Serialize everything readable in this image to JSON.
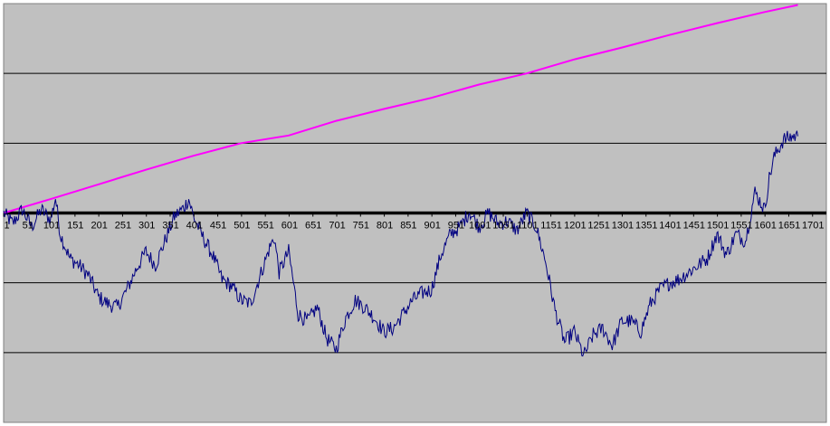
{
  "chart_data": {
    "type": "line",
    "title": "",
    "xlabel": "",
    "ylabel": "",
    "x_tick_labels": [
      "1",
      "51",
      "101",
      "151",
      "201",
      "251",
      "301",
      "351",
      "401",
      "451",
      "501",
      "551",
      "601",
      "651",
      "701",
      "751",
      "801",
      "851",
      "901",
      "951",
      "1001",
      "1051",
      "1101",
      "1151",
      "1201",
      "1251",
      "1301",
      "1351",
      "1401",
      "1451",
      "1501",
      "1551",
      "1601",
      "1651",
      "1701"
    ],
    "xlim": [
      1,
      1730
    ],
    "ylim": [
      -3,
      3
    ],
    "y_gridlines": [
      -3,
      -2,
      -1,
      0,
      1,
      2,
      3
    ],
    "grid": true,
    "legend": "none",
    "background_color": "#c0c0c0",
    "series": [
      {
        "color": "#ff00ff",
        "x": [
          1,
          100,
          200,
          300,
          400,
          500,
          600,
          700,
          800,
          900,
          1000,
          1100,
          1200,
          1300,
          1400,
          1500,
          1600,
          1670
        ],
        "y": [
          0.0,
          0.2,
          0.41,
          0.62,
          0.82,
          1.0,
          1.11,
          1.32,
          1.49,
          1.65,
          1.84,
          2.0,
          2.2,
          2.37,
          2.55,
          2.72,
          2.88,
          2.98
        ]
      },
      {
        "color": "#000080",
        "x": [
          1,
          20,
          40,
          60,
          80,
          100,
          110,
          120,
          140,
          160,
          180,
          200,
          220,
          240,
          260,
          280,
          300,
          320,
          340,
          360,
          380,
          390,
          400,
          420,
          440,
          460,
          480,
          500,
          520,
          540,
          560,
          570,
          580,
          600,
          620,
          640,
          660,
          680,
          700,
          720,
          740,
          760,
          780,
          800,
          820,
          840,
          860,
          880,
          900,
          920,
          940,
          960,
          980,
          1000,
          1020,
          1040,
          1060,
          1080,
          1100,
          1120,
          1140,
          1160,
          1180,
          1200,
          1220,
          1240,
          1260,
          1280,
          1300,
          1320,
          1340,
          1360,
          1380,
          1400,
          1420,
          1440,
          1460,
          1480,
          1500,
          1520,
          1540,
          1560,
          1580,
          1600,
          1610,
          1620,
          1640,
          1660,
          1670
        ],
        "y": [
          0.0,
          -0.15,
          0.05,
          -0.2,
          0.05,
          -0.1,
          0.22,
          -0.3,
          -0.65,
          -0.75,
          -0.9,
          -1.2,
          -1.3,
          -1.35,
          -1.1,
          -0.8,
          -0.55,
          -0.75,
          -0.4,
          -0.05,
          0.08,
          0.2,
          -0.05,
          -0.35,
          -0.6,
          -0.95,
          -1.05,
          -1.25,
          -1.3,
          -0.9,
          -0.5,
          -0.35,
          -0.85,
          -0.55,
          -1.45,
          -1.55,
          -1.35,
          -1.8,
          -1.95,
          -1.5,
          -1.25,
          -1.35,
          -1.5,
          -1.7,
          -1.65,
          -1.45,
          -1.25,
          -1.15,
          -1.1,
          -0.6,
          -0.3,
          -0.2,
          0.02,
          -0.2,
          0.0,
          -0.15,
          -0.12,
          -0.25,
          0.0,
          -0.2,
          -0.7,
          -1.4,
          -1.85,
          -1.7,
          -2.05,
          -1.75,
          -1.65,
          -1.9,
          -1.55,
          -1.55,
          -1.7,
          -1.3,
          -1.1,
          -1.0,
          -0.95,
          -0.85,
          -0.75,
          -0.65,
          -0.3,
          -0.6,
          -0.3,
          -0.4,
          0.3,
          0.05,
          0.5,
          0.8,
          1.05,
          1.1,
          1.1
        ]
      }
    ]
  }
}
